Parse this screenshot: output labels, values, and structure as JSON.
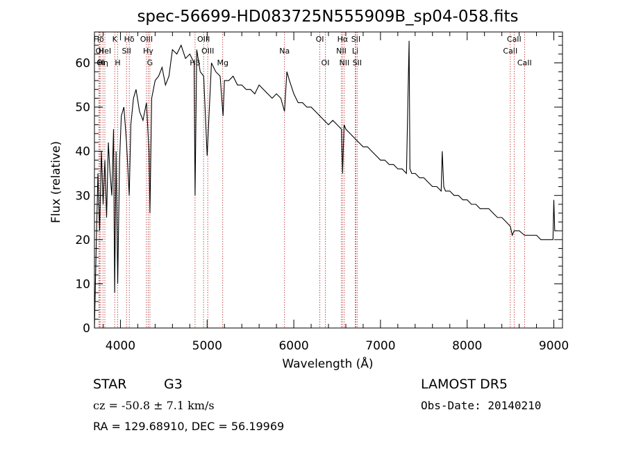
{
  "title": "spec-56699-HD083725N555909B_sp04-058.fits",
  "xlabel": "Wavelength (Å)",
  "ylabel": "Flux (relative)",
  "footer": {
    "class_label": "STAR",
    "subclass": "G3",
    "survey": "LAMOST DR5",
    "cz": "cz = -50.8 ± 7.1 km/s",
    "obs_date": "Obs-Date: 20140210",
    "coords": "RA = 129.68910, DEC =  56.19969"
  },
  "chart_data": {
    "type": "line",
    "title": "spec-56699-HD083725N555909B_sp04-058.fits",
    "xlabel": "Wavelength (Å)",
    "ylabel": "Flux (relative)",
    "xlim": [
      3700,
      9100
    ],
    "ylim": [
      0,
      67
    ],
    "xticks": [
      4000,
      5000,
      6000,
      7000,
      8000,
      9000
    ],
    "yticks": [
      0,
      10,
      20,
      30,
      40,
      50,
      60
    ],
    "grid": false,
    "series": [
      {
        "color": "#000000",
        "x": [
          3700,
          3720,
          3740,
          3760,
          3780,
          3800,
          3820,
          3840,
          3860,
          3880,
          3900,
          3920,
          3933,
          3950,
          3968,
          3990,
          4010,
          4040,
          4070,
          4101,
          4120,
          4150,
          4180,
          4220,
          4260,
          4300,
          4330,
          4340,
          4360,
          4400,
          4440,
          4480,
          4520,
          4560,
          4600,
          4650,
          4700,
          4750,
          4800,
          4850,
          4861,
          4880,
          4920,
          4960,
          5000,
          5050,
          5100,
          5150,
          5184,
          5200,
          5250,
          5300,
          5350,
          5400,
          5450,
          5500,
          5550,
          5600,
          5650,
          5700,
          5750,
          5800,
          5850,
          5893,
          5920,
          5950,
          6000,
          6050,
          6100,
          6150,
          6200,
          6250,
          6300,
          6350,
          6400,
          6450,
          6500,
          6550,
          6563,
          6580,
          6600,
          6650,
          6700,
          6750,
          6800,
          6850,
          6900,
          6950,
          7000,
          7050,
          7100,
          7150,
          7200,
          7250,
          7300,
          7330,
          7340,
          7360,
          7400,
          7450,
          7500,
          7550,
          7600,
          7650,
          7700,
          7712,
          7730,
          7750,
          7800,
          7850,
          7900,
          7950,
          8000,
          8050,
          8100,
          8150,
          8200,
          8250,
          8300,
          8350,
          8400,
          8450,
          8498,
          8520,
          8542,
          8560,
          8600,
          8662,
          8700,
          8750,
          8800,
          8850,
          8900,
          8950,
          8990,
          9000,
          9010,
          9030,
          9050
        ],
        "y": [
          0,
          18,
          35,
          22,
          40,
          28,
          38,
          25,
          42,
          35,
          30,
          45,
          8,
          40,
          10,
          38,
          48,
          50,
          42,
          30,
          46,
          52,
          54,
          49,
          47,
          51,
          40,
          26,
          52,
          56,
          57,
          59,
          55,
          57,
          63,
          62,
          64,
          61,
          62,
          60,
          30,
          63,
          58,
          57,
          39,
          60,
          58,
          57,
          48,
          56,
          56,
          57,
          55,
          55,
          54,
          54,
          53,
          55,
          54,
          53,
          52,
          53,
          52,
          49,
          58,
          56,
          53,
          51,
          51,
          50,
          50,
          49,
          48,
          47,
          46,
          47,
          46,
          45,
          35,
          46,
          45,
          44,
          43,
          42,
          41,
          41,
          40,
          39,
          38,
          38,
          37,
          37,
          36,
          36,
          35,
          65,
          36,
          35,
          35,
          34,
          34,
          33,
          32,
          32,
          31,
          40,
          32,
          31,
          31,
          30,
          30,
          29,
          29,
          28,
          28,
          27,
          27,
          27,
          26,
          25,
          25,
          24,
          23,
          21,
          22,
          22,
          22,
          21,
          21,
          21,
          21,
          20,
          20,
          20,
          20,
          29,
          22,
          22,
          22
        ]
      }
    ],
    "lines": [
      {
        "x": 3750,
        "label": "Hδ",
        "row": 0
      },
      {
        "x": 3760,
        "label": "OI",
        "row": 1
      },
      {
        "x": 3772,
        "label": "OI",
        "row": 2
      },
      {
        "x": 3798,
        "label": "Hη",
        "row": 2
      },
      {
        "x": 3820,
        "label": "HeI",
        "row": 1
      },
      {
        "x": 3934,
        "label": "K",
        "row": 0
      },
      {
        "x": 3969,
        "label": "H",
        "row": 2
      },
      {
        "x": 4070,
        "label": "SII",
        "row": 1
      },
      {
        "x": 4102,
        "label": "Hδ",
        "row": 0
      },
      {
        "x": 4300,
        "label": "OIII",
        "row": 0
      },
      {
        "x": 4320,
        "label": "Hγ",
        "row": 1
      },
      {
        "x": 4340,
        "label": "G",
        "row": 2
      },
      {
        "x": 4861,
        "label": "Hβ",
        "row": 2
      },
      {
        "x": 4959,
        "label": "OIII",
        "row": 0
      },
      {
        "x": 5007,
        "label": "OIII",
        "row": 1
      },
      {
        "x": 5180,
        "label": "Mg",
        "row": 2
      },
      {
        "x": 5893,
        "label": "Na",
        "row": 1
      },
      {
        "x": 6300,
        "label": "OI",
        "row": 0
      },
      {
        "x": 6364,
        "label": "OI",
        "row": 2
      },
      {
        "x": 6548,
        "label": "NII",
        "row": 1
      },
      {
        "x": 6563,
        "label": "Hα",
        "row": 0
      },
      {
        "x": 6583,
        "label": "NII",
        "row": 2
      },
      {
        "x": 6708,
        "label": "Li",
        "row": 1
      },
      {
        "x": 6716,
        "label": "SII",
        "row": 0
      },
      {
        "x": 6731,
        "label": "SII",
        "row": 2
      },
      {
        "x": 8498,
        "label": "CaII",
        "row": 1
      },
      {
        "x": 8542,
        "label": "CaII",
        "row": 0
      },
      {
        "x": 8662,
        "label": "CaII",
        "row": 2
      }
    ]
  }
}
